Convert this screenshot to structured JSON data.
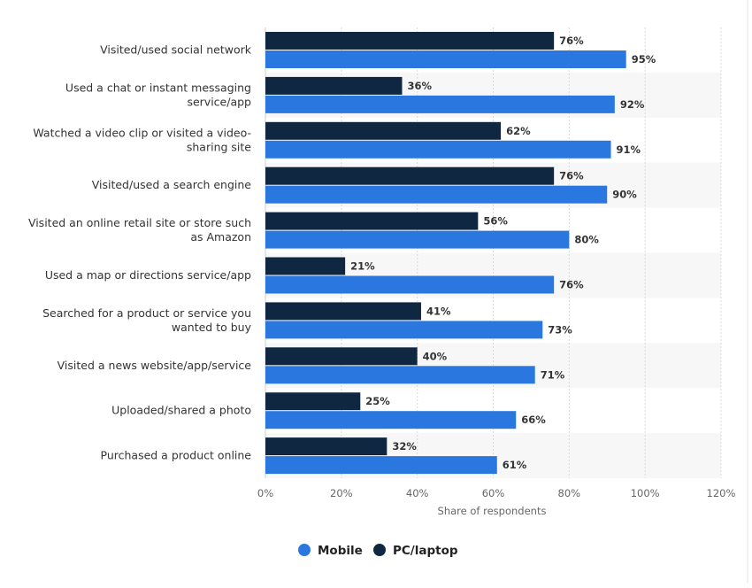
{
  "chart_data": {
    "type": "bar",
    "orientation": "horizontal",
    "categories": [
      [
        "Visited/used social network"
      ],
      [
        "Used a chat or instant messaging",
        "service/app"
      ],
      [
        "Watched a video clip or visited a video-",
        "sharing site"
      ],
      [
        "Visited/used a search engine"
      ],
      [
        "Visited an online retail site or store such",
        "as Amazon"
      ],
      [
        "Used a map or directions service/app"
      ],
      [
        "Searched for a product or service you",
        "wanted to buy"
      ],
      [
        "Visited a news website/app/service"
      ],
      [
        "Uploaded/shared a photo"
      ],
      [
        "Purchased a product online"
      ]
    ],
    "series": [
      {
        "name": "PC/laptop",
        "color": "#0f2740",
        "values": [
          76,
          36,
          62,
          76,
          56,
          21,
          41,
          40,
          25,
          32
        ]
      },
      {
        "name": "Mobile",
        "color": "#2a78df",
        "values": [
          95,
          92,
          91,
          90,
          80,
          76,
          73,
          71,
          66,
          61
        ]
      }
    ],
    "xlabel": "Share of respondents",
    "xlim": [
      0,
      120
    ],
    "ticks": [
      "0%",
      "20%",
      "40%",
      "60%",
      "80%",
      "100%",
      "120%"
    ],
    "value_suffix": "%",
    "grid": true,
    "legend": {
      "position": "bottom-center",
      "items": [
        {
          "name": "Mobile",
          "color": "#2a78df"
        },
        {
          "name": "PC/laptop",
          "color": "#0f2740"
        }
      ]
    }
  }
}
